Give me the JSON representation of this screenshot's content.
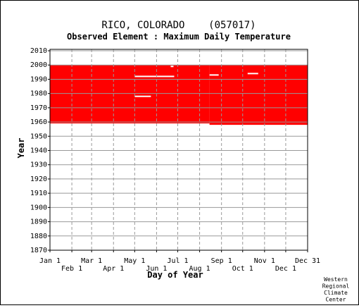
{
  "title": "RICO, COLORADO    (057017)",
  "subtitle": "Observed Element : Maximum Daily Temperature",
  "credit": [
    "Western",
    "Regional",
    "Climate",
    "Center"
  ],
  "colors": {
    "data": "#ff0000",
    "grid": "#999999",
    "axis": "#000000"
  },
  "chart_data": {
    "type": "heatmap",
    "title": "RICO, COLORADO    (057017)",
    "subtitle": "Observed Element : Maximum Daily Temperature",
    "xlabel": "Day of Year",
    "ylabel": "Year",
    "xlim": [
      1,
      366
    ],
    "ylim": [
      1870,
      2011
    ],
    "x_ticks_top_row": [
      {
        "label": "Jan 1",
        "day": 1
      },
      {
        "label": "Mar 1",
        "day": 60
      },
      {
        "label": "May 1",
        "day": 121
      },
      {
        "label": "Jul 1",
        "day": 182
      },
      {
        "label": "Sep 1",
        "day": 244
      },
      {
        "label": "Nov 1",
        "day": 305
      },
      {
        "label": "Dec 31",
        "day": 366
      }
    ],
    "x_ticks_bottom_row": [
      {
        "label": "Feb 1",
        "day": 32
      },
      {
        "label": "Apr 1",
        "day": 91
      },
      {
        "label": "Jun 1",
        "day": 152
      },
      {
        "label": "Aug 1",
        "day": 213
      },
      {
        "label": "Oct 1",
        "day": 274
      },
      {
        "label": "Dec 1",
        "day": 335
      }
    ],
    "y_ticks": [
      1870,
      1880,
      1890,
      1900,
      1910,
      1920,
      1930,
      1940,
      1950,
      1960,
      1970,
      1980,
      1990,
      2000,
      2010
    ],
    "grid": true,
    "coverage_blocks": [
      {
        "day_start": 1,
        "day_end": 227,
        "year_start": 1959,
        "year_end": 2000
      },
      {
        "day_start": 227,
        "day_end": 366,
        "year_start": 1958,
        "year_end": 2000
      }
    ],
    "gaps": [
      {
        "day_start": 121,
        "day_end": 177,
        "year": 1992
      },
      {
        "day_start": 121,
        "day_end": 144,
        "year": 1978
      },
      {
        "day_start": 172,
        "day_end": 176,
        "year": 1999
      },
      {
        "day_start": 227,
        "day_end": 240,
        "year": 1993
      },
      {
        "day_start": 281,
        "day_end": 296,
        "year": 1994
      }
    ]
  }
}
